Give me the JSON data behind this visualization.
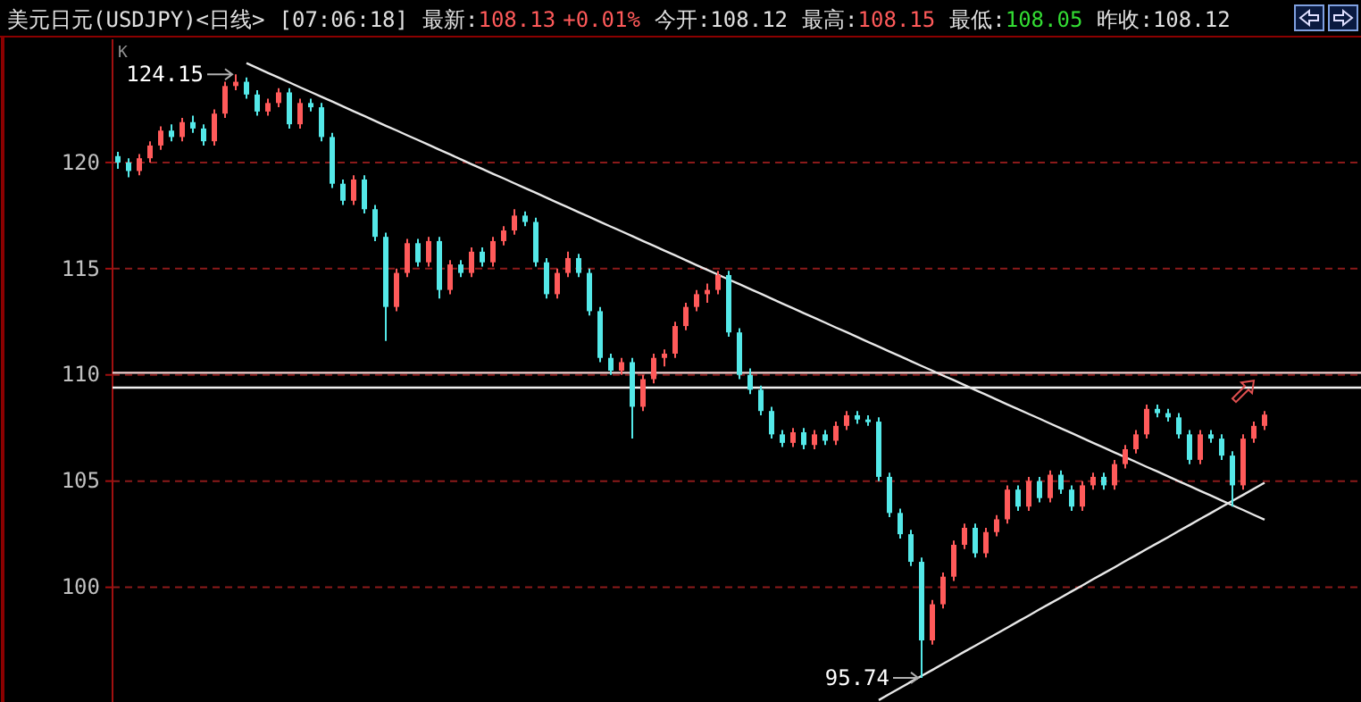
{
  "chart_data": {
    "type": "candlestick",
    "title": "美元日元(USDJPY)<日线>",
    "annotations": [
      "[07:06:18]",
      "最新:",
      "108.13",
      "+0.01%",
      "今开:108.12",
      "最高:",
      "108.15",
      "最低:",
      "108.05",
      "昨收:108.12",
      "K",
      "124.15",
      "95.74"
    ],
    "series": [
      {
        "type": "line",
        "color": "#e8e8e8",
        "values": [
          null,
          null,
          null,
          null,
          null,
          null,
          null,
          null,
          null,
          null,
          null,
          null,
          124.68,
          124.45,
          124.22,
          124.0,
          123.77,
          123.54,
          123.32,
          123.09,
          122.87,
          122.64,
          122.41,
          122.19,
          121.96,
          121.73,
          121.51,
          121.28,
          121.06,
          120.83,
          120.6,
          120.38,
          120.15,
          119.92,
          119.7,
          119.47,
          119.25,
          119.02,
          118.79,
          118.57,
          118.34,
          118.11,
          117.89,
          117.66,
          117.44,
          117.21,
          116.98,
          116.76,
          116.53,
          116.3,
          116.08,
          115.85,
          115.63,
          115.4,
          115.17,
          114.95,
          114.72,
          114.49,
          114.27,
          114.04,
          113.82,
          113.59,
          113.36,
          113.14,
          112.91,
          112.69,
          112.46,
          112.23,
          112.01,
          111.78,
          111.55,
          111.33,
          111.1,
          110.88,
          110.65,
          110.42,
          110.2,
          109.97,
          109.75,
          109.52,
          109.29,
          109.07,
          108.84,
          108.61,
          108.39,
          108.16,
          107.94,
          107.71,
          107.48,
          107.26,
          107.03,
          106.8,
          106.58,
          106.35,
          106.13,
          105.9,
          105.67,
          105.45,
          105.22,
          104.99,
          104.77,
          104.54,
          104.32,
          104.09,
          103.86,
          103.64,
          103.41,
          103.18
        ]
      },
      {
        "type": "line",
        "color": "#e8e8e8",
        "values": [
          null,
          null,
          null,
          null,
          null,
          null,
          null,
          null,
          null,
          null,
          null,
          null,
          null,
          null,
          null,
          null,
          null,
          null,
          null,
          null,
          null,
          null,
          null,
          null,
          null,
          null,
          null,
          null,
          null,
          null,
          null,
          null,
          null,
          null,
          null,
          null,
          null,
          null,
          null,
          null,
          null,
          null,
          null,
          null,
          null,
          null,
          null,
          null,
          null,
          null,
          null,
          null,
          null,
          null,
          null,
          null,
          null,
          null,
          null,
          null,
          null,
          null,
          null,
          null,
          null,
          null,
          null,
          null,
          null,
          null,
          null,
          94.69,
          94.98,
          95.26,
          95.55,
          95.83,
          96.11,
          96.4,
          96.68,
          96.97,
          97.25,
          97.53,
          97.82,
          98.1,
          98.39,
          98.67,
          98.96,
          99.24,
          99.52,
          99.81,
          100.09,
          100.38,
          100.66,
          100.94,
          101.23,
          101.51,
          101.8,
          102.08,
          102.36,
          102.65,
          102.93,
          103.22,
          103.5,
          103.79,
          104.07,
          104.35,
          104.64,
          104.92
        ]
      }
    ],
    "categories": [
      null,
      null,
      null,
      null,
      null,
      null,
      null,
      null,
      null,
      null,
      null,
      null,
      null,
      null,
      null,
      null,
      null,
      null,
      null,
      null,
      null,
      null,
      null,
      null,
      null,
      null,
      null,
      null,
      null,
      null,
      null,
      null,
      null,
      null,
      null,
      null,
      null,
      null,
      null,
      null,
      null,
      null,
      null,
      null,
      null,
      null,
      null,
      null,
      null,
      null,
      null,
      null,
      null,
      null,
      null,
      null,
      null,
      null,
      null,
      null,
      null,
      null,
      null,
      null,
      null,
      null,
      null,
      null,
      null,
      null,
      null,
      null,
      null,
      null,
      null,
      null,
      null,
      null,
      null,
      null,
      null,
      null,
      null,
      null,
      null,
      null,
      null,
      null,
      null,
      null,
      null,
      null,
      null,
      null,
      null,
      null,
      null,
      null,
      null,
      null,
      null,
      null,
      null,
      null,
      null,
      null,
      null,
      null
    ],
    "ohlc": [
      [
        120.3,
        120.5,
        119.7,
        120.0
      ],
      [
        120.0,
        120.2,
        119.3,
        119.6
      ],
      [
        119.6,
        120.4,
        119.4,
        120.2
      ],
      [
        120.2,
        121.0,
        120.0,
        120.8
      ],
      [
        120.8,
        121.7,
        120.6,
        121.5
      ],
      [
        121.5,
        121.8,
        121.0,
        121.2
      ],
      [
        121.2,
        122.1,
        121.0,
        121.9
      ],
      [
        121.9,
        122.2,
        121.4,
        121.6
      ],
      [
        121.6,
        121.8,
        120.8,
        121.0
      ],
      [
        121.0,
        122.5,
        120.8,
        122.3
      ],
      [
        122.3,
        123.8,
        122.1,
        123.6
      ],
      [
        123.6,
        124.15,
        123.4,
        123.8
      ],
      [
        123.8,
        124.0,
        123.0,
        123.2
      ],
      [
        123.2,
        123.4,
        122.2,
        122.4
      ],
      [
        122.4,
        123.0,
        122.2,
        122.8
      ],
      [
        122.8,
        123.5,
        122.6,
        123.3
      ],
      [
        123.3,
        123.5,
        121.6,
        121.8
      ],
      [
        121.8,
        123.0,
        121.6,
        122.8
      ],
      [
        122.8,
        123.0,
        122.4,
        122.6
      ],
      [
        122.6,
        122.8,
        121.0,
        121.2
      ],
      [
        121.2,
        121.4,
        118.8,
        119.0
      ],
      [
        119.0,
        119.2,
        118.0,
        118.2
      ],
      [
        118.2,
        119.4,
        118.0,
        119.2
      ],
      [
        119.2,
        119.4,
        117.6,
        117.8
      ],
      [
        117.8,
        118.0,
        116.3,
        116.5
      ],
      [
        116.5,
        116.7,
        111.6,
        113.2
      ],
      [
        113.2,
        115.0,
        113.0,
        114.8
      ],
      [
        114.8,
        116.4,
        114.6,
        116.2
      ],
      [
        116.2,
        116.4,
        115.1,
        115.3
      ],
      [
        115.3,
        116.5,
        115.1,
        116.3
      ],
      [
        116.3,
        116.5,
        113.6,
        114.0
      ],
      [
        114.0,
        115.4,
        113.8,
        115.2
      ],
      [
        115.2,
        115.4,
        114.6,
        114.8
      ],
      [
        114.8,
        116.0,
        114.6,
        115.8
      ],
      [
        115.8,
        116.0,
        115.1,
        115.3
      ],
      [
        115.3,
        116.5,
        115.1,
        116.3
      ],
      [
        116.3,
        117.0,
        116.1,
        116.8
      ],
      [
        116.8,
        117.8,
        116.6,
        117.5
      ],
      [
        117.5,
        117.7,
        117.0,
        117.2
      ],
      [
        117.2,
        117.4,
        115.1,
        115.3
      ],
      [
        115.3,
        115.5,
        113.6,
        113.8
      ],
      [
        113.8,
        115.0,
        113.6,
        114.8
      ],
      [
        114.8,
        115.8,
        114.6,
        115.5
      ],
      [
        115.5,
        115.7,
        114.6,
        114.8
      ],
      [
        114.8,
        115.0,
        112.8,
        113.0
      ],
      [
        113.0,
        113.2,
        110.6,
        110.8
      ],
      [
        110.8,
        111.0,
        110.0,
        110.2
      ],
      [
        110.2,
        110.8,
        110.0,
        110.6
      ],
      [
        110.6,
        110.8,
        107.0,
        108.5
      ],
      [
        108.5,
        110.0,
        108.3,
        109.8
      ],
      [
        109.8,
        111.0,
        109.6,
        110.8
      ],
      [
        110.8,
        111.2,
        110.4,
        111.0
      ],
      [
        111.0,
        112.5,
        110.8,
        112.3
      ],
      [
        112.3,
        113.4,
        112.1,
        113.2
      ],
      [
        113.2,
        114.0,
        113.0,
        113.8
      ],
      [
        113.8,
        114.3,
        113.4,
        114.0
      ],
      [
        114.0,
        114.9,
        113.8,
        114.7
      ],
      [
        114.7,
        114.9,
        111.8,
        112.0
      ],
      [
        112.0,
        112.2,
        109.8,
        110.0
      ],
      [
        110.0,
        110.3,
        109.1,
        109.3
      ],
      [
        109.3,
        109.5,
        108.1,
        108.3
      ],
      [
        108.3,
        108.5,
        107.0,
        107.2
      ],
      [
        107.2,
        107.4,
        106.6,
        106.8
      ],
      [
        106.8,
        107.5,
        106.6,
        107.3
      ],
      [
        107.3,
        107.5,
        106.5,
        106.7
      ],
      [
        106.7,
        107.4,
        106.5,
        107.2
      ],
      [
        107.2,
        107.4,
        106.7,
        106.9
      ],
      [
        106.9,
        107.8,
        106.7,
        107.6
      ],
      [
        107.6,
        108.3,
        107.4,
        108.1
      ],
      [
        108.1,
        108.3,
        107.7,
        107.9
      ],
      [
        107.9,
        108.1,
        107.6,
        107.8
      ],
      [
        107.8,
        108.0,
        105.0,
        105.2
      ],
      [
        105.2,
        105.4,
        103.3,
        103.5
      ],
      [
        103.5,
        103.7,
        102.3,
        102.5
      ],
      [
        102.5,
        102.7,
        101.0,
        101.2
      ],
      [
        101.2,
        101.4,
        95.74,
        97.5
      ],
      [
        97.5,
        99.4,
        97.3,
        99.2
      ],
      [
        99.2,
        100.7,
        99.0,
        100.5
      ],
      [
        100.5,
        102.2,
        100.3,
        102.0
      ],
      [
        102.0,
        103.0,
        101.8,
        102.8
      ],
      [
        102.8,
        103.0,
        101.4,
        101.6
      ],
      [
        101.6,
        102.8,
        101.4,
        102.6
      ],
      [
        102.6,
        103.4,
        102.4,
        103.2
      ],
      [
        103.2,
        104.8,
        103.0,
        104.6
      ],
      [
        104.6,
        104.8,
        103.6,
        103.8
      ],
      [
        103.8,
        105.2,
        103.6,
        105.0
      ],
      [
        105.0,
        105.2,
        104.0,
        104.2
      ],
      [
        104.2,
        105.5,
        104.0,
        105.3
      ],
      [
        105.3,
        105.5,
        104.4,
        104.6
      ],
      [
        104.6,
        104.8,
        103.6,
        103.8
      ],
      [
        103.8,
        105.0,
        103.6,
        104.8
      ],
      [
        104.8,
        105.4,
        104.6,
        105.2
      ],
      [
        105.2,
        105.4,
        104.6,
        104.8
      ],
      [
        104.8,
        106.0,
        104.6,
        105.8
      ],
      [
        105.8,
        106.7,
        105.6,
        106.5
      ],
      [
        106.5,
        107.4,
        106.3,
        107.2
      ],
      [
        107.2,
        108.6,
        107.0,
        108.4
      ],
      [
        108.4,
        108.6,
        108.0,
        108.2
      ],
      [
        108.2,
        108.4,
        107.8,
        108.0
      ],
      [
        108.0,
        108.2,
        107.0,
        107.2
      ],
      [
        107.2,
        107.4,
        105.8,
        106.0
      ],
      [
        106.0,
        107.4,
        105.8,
        107.2
      ],
      [
        107.2,
        107.4,
        106.8,
        107.0
      ],
      [
        107.0,
        107.2,
        106.0,
        106.2
      ],
      [
        106.2,
        106.4,
        103.8,
        104.8
      ],
      [
        104.8,
        107.2,
        104.6,
        107.0
      ],
      [
        107.0,
        107.8,
        106.8,
        107.6
      ],
      [
        107.6,
        108.3,
        107.4,
        108.13
      ]
    ],
    "ref_lines": [
      {
        "axis": "y",
        "value": 110.1,
        "color": "#f0d0d0"
      },
      {
        "axis": "y",
        "value": 109.4,
        "color": "#f0f0f0"
      }
    ],
    "ylim": [
      94.6,
      125.8
    ],
    "yticks": [
      100,
      105,
      110,
      115,
      120
    ],
    "tick_labels": "y",
    "grid": "y"
  }
}
